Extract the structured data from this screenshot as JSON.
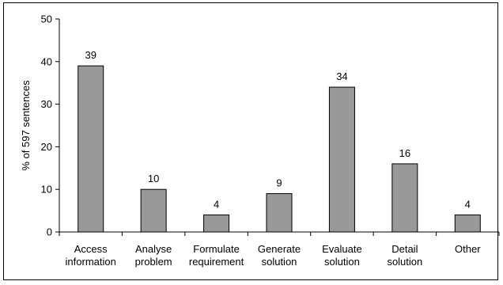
{
  "chart_data": {
    "type": "bar",
    "categories": [
      [
        "Access",
        "information"
      ],
      [
        "Analyse",
        "problem"
      ],
      [
        "Formulate",
        "requirement"
      ],
      [
        "Generate",
        "solution"
      ],
      [
        "Evaluate",
        "solution"
      ],
      [
        "Detail",
        "solution"
      ],
      [
        "Other"
      ]
    ],
    "values": [
      39,
      10,
      4,
      9,
      34,
      16,
      4
    ],
    "data_labels": [
      "39",
      "10",
      "4",
      "9",
      "34",
      "16",
      "4"
    ],
    "title": "",
    "xlabel": "",
    "ylabel": "% of 597 sentences",
    "ylim": [
      0,
      50
    ],
    "yticks": [
      0,
      10,
      20,
      30,
      40,
      50
    ],
    "grid": false,
    "legend": "none",
    "colors": {
      "bar_fill": "#999999",
      "bar_stroke": "#000000",
      "axis": "#000000"
    }
  }
}
